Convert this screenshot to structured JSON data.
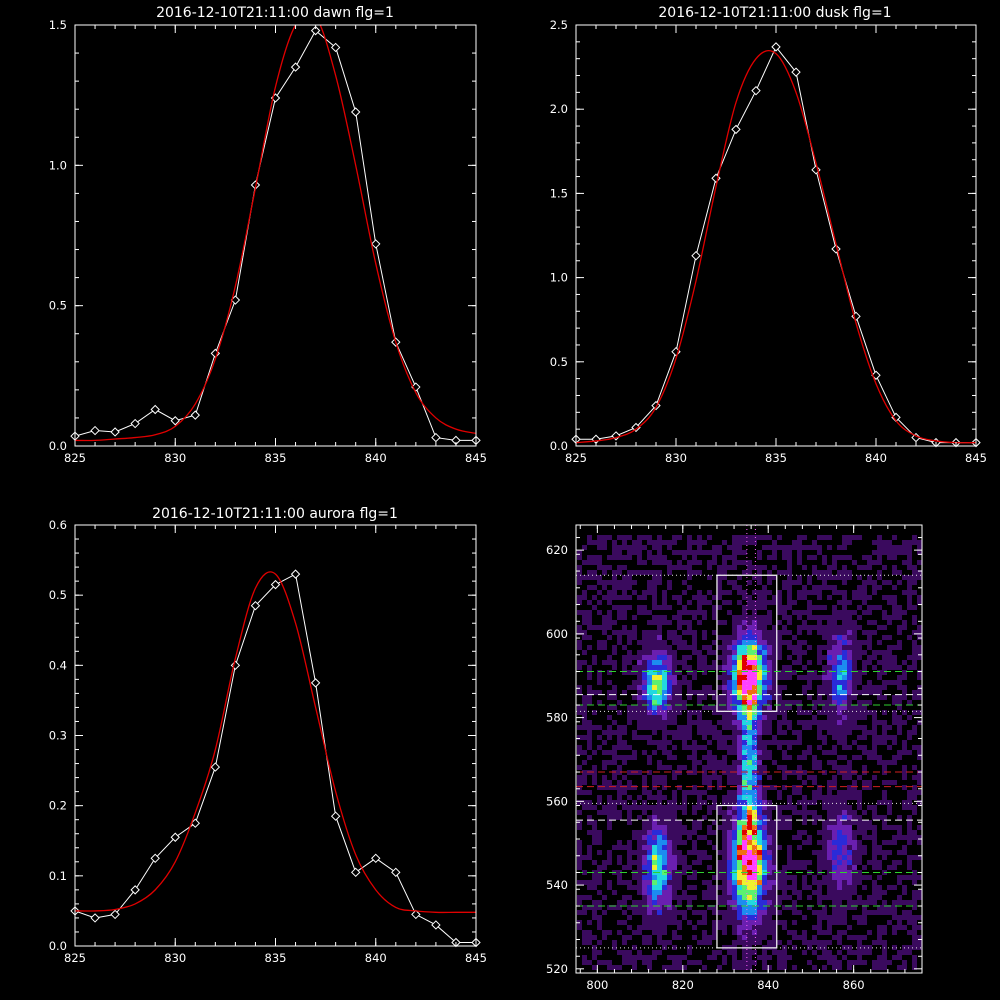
{
  "chart_data": [
    {
      "type": "line",
      "title": "2016-12-10T21:11:00 dawn flg=1",
      "xlim": [
        825,
        845
      ],
      "ylim": [
        0,
        1.5
      ],
      "xticks": [
        825,
        830,
        835,
        840,
        845
      ],
      "yticks": [
        0,
        0.5,
        1.0,
        1.5
      ],
      "ytick_labels": [
        "0.0",
        "0.5",
        "1.0",
        "1.5"
      ],
      "series": [
        {
          "style": "white line with diamond markers",
          "color": "#ffffff",
          "x": [
            825,
            826,
            827,
            828,
            829,
            830,
            831,
            832,
            833,
            834,
            835,
            836,
            837,
            838,
            839,
            840,
            841,
            842,
            843,
            844,
            845
          ],
          "y": [
            0.035,
            0.055,
            0.05,
            0.08,
            0.13,
            0.09,
            0.11,
            0.33,
            0.52,
            0.93,
            1.24,
            1.35,
            1.48,
            1.42,
            1.19,
            0.72,
            0.37,
            0.21,
            0.03,
            0.02,
            0.02
          ]
        },
        {
          "style": "red gaussian fit",
          "color": "#e00000",
          "x": [
            825,
            826,
            827,
            828,
            829,
            830,
            831,
            832,
            833,
            834,
            835,
            836,
            837,
            838,
            839,
            840,
            841,
            842,
            843,
            844,
            845
          ],
          "y": [
            0.02,
            0.02,
            0.025,
            0.03,
            0.04,
            0.07,
            0.15,
            0.31,
            0.57,
            0.92,
            1.28,
            1.5,
            1.53,
            1.32,
            1.0,
            0.65,
            0.37,
            0.19,
            0.1,
            0.06,
            0.045
          ]
        }
      ]
    },
    {
      "type": "line",
      "title": "2016-12-10T21:11:00 dusk flg=1",
      "xlim": [
        825,
        845
      ],
      "ylim": [
        0,
        2.5
      ],
      "xticks": [
        825,
        830,
        835,
        840,
        845
      ],
      "yticks": [
        0,
        0.5,
        1.0,
        1.5,
        2.0,
        2.5
      ],
      "ytick_labels": [
        "0.0",
        "0.5",
        "1.0",
        "1.5",
        "2.0",
        "2.5"
      ],
      "series": [
        {
          "style": "white line with diamond markers",
          "color": "#ffffff",
          "x": [
            825,
            826,
            827,
            828,
            829,
            830,
            831,
            832,
            833,
            834,
            835,
            836,
            837,
            838,
            839,
            840,
            841,
            842,
            843,
            844,
            845
          ],
          "y": [
            0.04,
            0.04,
            0.06,
            0.11,
            0.24,
            0.56,
            1.13,
            1.59,
            1.88,
            2.11,
            2.37,
            2.22,
            1.64,
            1.17,
            0.77,
            0.42,
            0.17,
            0.05,
            0.02,
            0.02,
            0.02
          ]
        },
        {
          "style": "red gaussian fit",
          "color": "#e00000",
          "x": [
            825,
            826,
            827,
            828,
            829,
            830,
            831,
            832,
            833,
            834,
            835,
            836,
            837,
            838,
            839,
            840,
            841,
            842,
            843,
            844,
            845
          ],
          "y": [
            0.02,
            0.03,
            0.05,
            0.1,
            0.23,
            0.52,
            0.98,
            1.54,
            2.04,
            2.3,
            2.33,
            2.1,
            1.68,
            1.2,
            0.73,
            0.37,
            0.15,
            0.06,
            0.03,
            0.02,
            0.02
          ]
        }
      ]
    },
    {
      "type": "line",
      "title": "2016-12-10T21:11:00 aurora flg=1",
      "xlim": [
        825,
        845
      ],
      "ylim": [
        0,
        0.6
      ],
      "xticks": [
        825,
        830,
        835,
        840,
        845
      ],
      "yticks": [
        0,
        0.1,
        0.2,
        0.3,
        0.4,
        0.5,
        0.6
      ],
      "ytick_labels": [
        "0.0",
        "0.1",
        "0.2",
        "0.3",
        "0.4",
        "0.5",
        "0.6"
      ],
      "series": [
        {
          "style": "white line with diamond markers",
          "color": "#ffffff",
          "x": [
            825,
            826,
            827,
            828,
            829,
            830,
            831,
            832,
            833,
            834,
            835,
            836,
            837,
            838,
            839,
            840,
            841,
            842,
            843,
            844,
            845
          ],
          "y": [
            0.05,
            0.04,
            0.045,
            0.08,
            0.125,
            0.155,
            0.175,
            0.255,
            0.4,
            0.485,
            0.515,
            0.53,
            0.375,
            0.185,
            0.105,
            0.125,
            0.105,
            0.045,
            0.03,
            0.005,
            0.005
          ]
        },
        {
          "style": "red gaussian fit",
          "color": "#e00000",
          "x": [
            825,
            826,
            827,
            828,
            829,
            830,
            831,
            832,
            833,
            834,
            835,
            836,
            837,
            838,
            839,
            840,
            841,
            842,
            843,
            844,
            845
          ],
          "y": [
            0.05,
            0.05,
            0.052,
            0.06,
            0.08,
            0.12,
            0.19,
            0.28,
            0.41,
            0.51,
            0.53,
            0.46,
            0.34,
            0.22,
            0.13,
            0.08,
            0.055,
            0.05,
            0.048,
            0.048,
            0.048
          ]
        }
      ]
    },
    {
      "type": "heatmap",
      "title": "",
      "xlim": [
        795,
        876
      ],
      "ylim": [
        519,
        626
      ],
      "xticks": [
        800,
        820,
        840,
        860
      ],
      "yticks": [
        520,
        540,
        560,
        580,
        600,
        620
      ],
      "colormap": [
        "#000000",
        "#3a0a5e",
        "#6a1fb0",
        "#2a2bd8",
        "#1c8cf0",
        "#22d8e0",
        "#5cf070",
        "#f0f030",
        "#f07010",
        "#e00000",
        "#ff40ff"
      ],
      "blobs": [
        {
          "x": 814,
          "y": 588,
          "sx": 2.2,
          "sy": 5,
          "peak": 0.6
        },
        {
          "x": 814,
          "y": 544,
          "sx": 2.2,
          "sy": 7,
          "peak": 0.5
        },
        {
          "x": 835.5,
          "y": 590,
          "sx": 2.6,
          "sy": 6,
          "peak": 1.0
        },
        {
          "x": 835.5,
          "y": 545,
          "sx": 2.6,
          "sy": 8,
          "peak": 0.95
        },
        {
          "x": 835.5,
          "y": 568,
          "sx": 1.5,
          "sy": 12,
          "peak": 0.45
        },
        {
          "x": 857,
          "y": 590,
          "sx": 2,
          "sy": 7,
          "peak": 0.35
        },
        {
          "x": 857,
          "y": 548,
          "sx": 2,
          "sy": 7,
          "peak": 0.3
        }
      ],
      "boxes": [
        {
          "x": [
            828,
            842
          ],
          "y": [
            581.5,
            614
          ]
        },
        {
          "x": [
            828,
            842
          ],
          "y": [
            525,
            559
          ]
        }
      ],
      "hlines": [
        {
          "y": 614,
          "color": "#e8e8e8",
          "style": "dotted"
        },
        {
          "y": 591,
          "color": "#30d030",
          "style": "dashed"
        },
        {
          "y": 585.5,
          "color": "#ffffff",
          "style": "dashed"
        },
        {
          "y": 583,
          "color": "#30d030",
          "style": "dashed"
        },
        {
          "y": 581.5,
          "color": "#e8e8e8",
          "style": "dotted"
        },
        {
          "y": 567,
          "color": "#d02020",
          "style": "dashed"
        },
        {
          "y": 563.5,
          "color": "#d02020",
          "style": "dashed"
        },
        {
          "y": 559.5,
          "color": "#e8e8e8",
          "style": "dotted"
        },
        {
          "y": 555.5,
          "color": "#ffffff",
          "style": "dashed"
        },
        {
          "y": 543,
          "color": "#30d030",
          "style": "dashed"
        },
        {
          "y": 535,
          "color": "#30d030",
          "style": "dashed"
        },
        {
          "y": 525,
          "color": "#e8e8e8",
          "style": "dotted"
        }
      ],
      "vlines": [
        {
          "x": 835,
          "color": "#ff60ff",
          "style": "dotted"
        },
        {
          "x": 837,
          "color": "#ff60ff",
          "style": "dotted"
        }
      ]
    }
  ]
}
